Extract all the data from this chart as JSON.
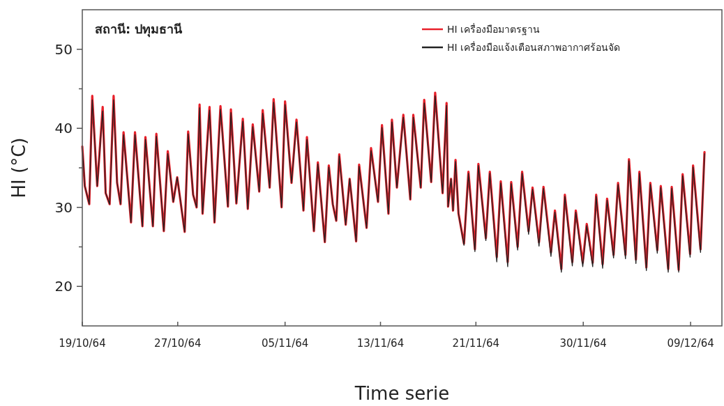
{
  "chart_data": {
    "type": "line",
    "ylabel": "HI (°C)",
    "xlabel": "Time serie",
    "annotations": [
      "สถานี: ปทุมธานี"
    ],
    "x": [
      "--10-19T00:00",
      "--10-19T05:00",
      "--10-19T14:00",
      "--10-19T20:00",
      "--10-20T06:00",
      "--10-20T17:00",
      "--10-20T23:00",
      "--10-21T07:00",
      "--10-21T15:00",
      "--10-21T22:00",
      "--10-22T05:00",
      "--10-22T11:00",
      "--10-23T02:00",
      "--10-23T10:00",
      "--10-24T01:00",
      "--10-24T07:00",
      "--10-24T22:00",
      "--10-25T05:00",
      "--10-25T20:00",
      "--10-26T04:00",
      "--10-26T15:00",
      "--10-26T23:00",
      "--10-27T14:00",
      "--10-27T21:00",
      "--10-28T07:00",
      "--10-28T14:00",
      "--10-28T20:00",
      "--10-29T02:00",
      "--10-29T16:00",
      "--10-30T02:00",
      "--10-30T14:00",
      "--10-31T05:00",
      "--10-31T11:00",
      "--10-31T22:00",
      "--11-01T11:00",
      "--11-01T21:00",
      "--11-02T07:00",
      "--11-02T20:00",
      "--11-03T03:00",
      "--11-03T17:00",
      "--11-04T01:00",
      "--11-04T17:00",
      "--11-05T00:00",
      "--11-05T13:00",
      "--11-05T23:00",
      "--11-06T13:00",
      "--11-06T20:00",
      "--11-07T10:00",
      "--11-07T18:00",
      "--11-08T08:00",
      "--11-08T16:00",
      "--11-09T00:00",
      "--11-09T07:00",
      "--11-09T13:00",
      "--11-10T02:00",
      "--11-10T10:00",
      "--11-10T23:00",
      "--11-11T05:00",
      "--11-11T20:00",
      "--11-12T05:00",
      "--11-12T19:00",
      "--11-13T03:00",
      "--11-13T16:00",
      "--11-13T23:00",
      "--11-14T09:00",
      "--11-14T22:00",
      "--11-15T12:00",
      "--11-15T18:00",
      "--11-16T09:00",
      "--11-16T16:00",
      "--11-17T06:00",
      "--11-17T14:00",
      "--11-18T05:00",
      "--11-18T13:00",
      "--11-18T16:00",
      "--11-18T22:00",
      "--11-19T02:00",
      "--11-19T07:00",
      "--11-19T13:00",
      "--11-20T00:00",
      "--11-20T09:00",
      "--11-20T22:00",
      "--11-21T05:00",
      "--11-21T20:00",
      "--11-22T04:00",
      "--11-22T18:00",
      "--11-23T02:00",
      "--11-23T16:00",
      "--11-23T23:00",
      "--11-24T12:00",
      "--11-24T21:00",
      "--11-25T10:00",
      "--11-25T18:00",
      "--11-26T07:00",
      "--11-26T16:00",
      "--11-27T07:00",
      "--11-27T15:00",
      "--11-28T04:00",
      "--11-28T11:00",
      "--11-29T02:00",
      "--11-29T09:00",
      "--11-29T23:00",
      "--11-30T07:00",
      "--11-30T19:00",
      "--12-01T02:00",
      "--12-01T15:00",
      "--12-02T00:00",
      "--12-02T13:00",
      "--12-02T22:00",
      "--12-03T13:00",
      "--12-03T20:00",
      "--12-04T10:00",
      "--12-04T17:00",
      "--12-05T07:00",
      "--12-05T15:00",
      "--12-06T05:00",
      "--12-06T12:00",
      "--12-07T03:00",
      "--12-07T10:00",
      "--12-08T00:00",
      "--12-08T08:00",
      "--12-08T23:00",
      "--12-09T05:00",
      "--12-09T20:00",
      "--12-10T04:00"
    ],
    "series": [
      {
        "name": "HI เครื่องมือมาตรฐาน",
        "color": "#e8202a",
        "values": [
          37.7,
          32.7,
          30.4,
          44.1,
          32.7,
          42.7,
          31.8,
          30.4,
          44.1,
          33.1,
          30.4,
          39.5,
          28.1,
          39.5,
          27.6,
          38.9,
          27.6,
          39.3,
          27.0,
          37.1,
          30.7,
          33.8,
          26.9,
          39.6,
          31.6,
          30.0,
          43.0,
          29.2,
          42.7,
          28.1,
          42.8,
          30.1,
          42.4,
          30.5,
          41.2,
          29.8,
          40.5,
          32.0,
          42.3,
          32.5,
          43.7,
          30.0,
          43.4,
          33.1,
          41.1,
          29.6,
          38.9,
          27.0,
          35.7,
          25.6,
          35.3,
          30.4,
          28.3,
          36.7,
          27.8,
          33.6,
          25.7,
          35.4,
          27.4,
          37.5,
          30.7,
          40.4,
          29.2,
          41.1,
          32.5,
          41.7,
          31.0,
          41.7,
          32.5,
          43.6,
          33.2,
          44.5,
          31.8,
          43.2,
          30.1,
          33.6,
          29.6,
          36.0,
          29.2,
          25.4,
          34.5,
          24.7,
          35.5,
          26.1,
          34.5,
          23.7,
          33.3,
          23.1,
          33.2,
          25.0,
          34.5,
          27.0,
          32.5,
          25.6,
          32.6,
          24.3,
          29.6,
          22.2,
          31.6,
          23.1,
          29.6,
          23.0,
          27.9,
          23.0,
          31.6,
          22.8,
          31.1,
          24.0,
          33.1,
          24.0,
          36.1,
          23.4,
          34.5,
          22.4,
          33.1,
          24.6,
          32.7,
          22.2,
          32.6,
          22.1,
          34.2,
          24.1,
          35.3,
          24.7,
          37.0
        ]
      },
      {
        "name": "HI เครื่องมือแจ้งเตือนสภาพอากาศร้อนจัด",
        "color": "#222222",
        "values": [
          37.7,
          32.7,
          30.4,
          43.6,
          32.7,
          42.2,
          31.8,
          30.4,
          43.6,
          33.1,
          30.4,
          39.2,
          28.1,
          39.2,
          27.6,
          38.6,
          27.6,
          39.0,
          27.0,
          36.8,
          30.7,
          33.8,
          26.9,
          39.3,
          31.6,
          30.0,
          42.6,
          29.2,
          42.3,
          28.1,
          42.4,
          30.1,
          42.0,
          30.5,
          40.9,
          29.8,
          40.2,
          32.0,
          41.9,
          32.5,
          43.3,
          30.0,
          43.0,
          33.1,
          40.8,
          29.6,
          38.6,
          27.0,
          35.5,
          25.6,
          35.1,
          30.4,
          28.3,
          36.5,
          27.8,
          33.6,
          25.7,
          35.2,
          27.4,
          37.2,
          30.7,
          40.1,
          29.2,
          40.8,
          32.5,
          41.4,
          31.0,
          41.4,
          32.5,
          43.2,
          33.2,
          44.1,
          31.8,
          42.9,
          30.1,
          33.6,
          29.6,
          35.8,
          29.2,
          25.2,
          34.3,
          24.4,
          35.3,
          25.8,
          34.3,
          23.1,
          33.1,
          22.5,
          33.0,
          24.6,
          34.3,
          26.6,
          32.3,
          25.1,
          32.4,
          23.8,
          29.4,
          21.8,
          31.4,
          22.6,
          29.4,
          22.5,
          27.7,
          22.5,
          31.4,
          22.3,
          30.9,
          23.6,
          32.9,
          23.5,
          35.9,
          22.9,
          34.3,
          22.0,
          32.9,
          24.2,
          32.5,
          21.8,
          32.4,
          21.8,
          34.0,
          23.7,
          35.1,
          24.3,
          36.8
        ]
      }
    ],
    "xlim": [
      "--10-19",
      "--12-11T15:00"
    ],
    "xticks": [
      {
        "value": "--10-19",
        "label": "19/10/64"
      },
      {
        "value": "--10-27",
        "label": "27/10/64"
      },
      {
        "value": "--11-05",
        "label": "05/11/64"
      },
      {
        "value": "--11-13",
        "label": "13/11/64"
      },
      {
        "value": "--11-21",
        "label": "21/11/64"
      },
      {
        "value": "--11-30",
        "label": "30/11/64"
      },
      {
        "value": "--12-09",
        "label": "09/12/64"
      }
    ],
    "ylim": [
      15,
      55
    ],
    "yticks": [
      20,
      {
        "value": 25,
        "label": null
      },
      30,
      {
        "value": 35,
        "label": null
      },
      40,
      {
        "value": 45,
        "label": null
      },
      50
    ],
    "grid": false,
    "legend": "top right",
    "line_style": "solid",
    "marker": "none"
  }
}
